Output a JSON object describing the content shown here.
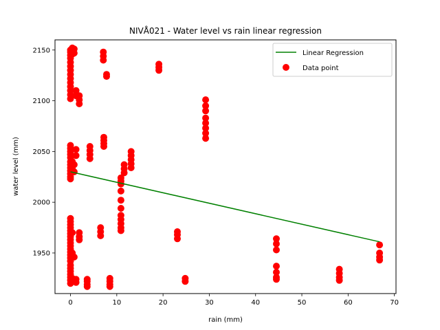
{
  "chart_data": {
    "type": "scatter",
    "title": "NIVÅ021 - Water level vs rain linear regression",
    "xlabel": "rain (mm)",
    "ylabel": "water level (mm)",
    "xlim": [
      -3.35,
      70.35
    ],
    "ylim": [
      1910,
      2160
    ],
    "x_ticks": [
      0,
      10,
      20,
      30,
      40,
      50,
      60,
      70
    ],
    "y_ticks": [
      1950,
      2000,
      2050,
      2100,
      2150
    ],
    "grid": false,
    "legend_position": "top-right",
    "colors": {
      "points": "#ff0000",
      "regression": "#008000"
    },
    "series": [
      {
        "name": "Data point",
        "kind": "scatter",
        "points": [
          [
            0,
            2150
          ],
          [
            0,
            2148
          ],
          [
            0,
            2145
          ],
          [
            0,
            2142
          ],
          [
            0,
            2138
          ],
          [
            0,
            2134
          ],
          [
            0,
            2130
          ],
          [
            0,
            2126
          ],
          [
            0,
            2122
          ],
          [
            0,
            2118
          ],
          [
            0,
            2114
          ],
          [
            0,
            2110
          ],
          [
            0,
            2106
          ],
          [
            0,
            2102
          ],
          [
            0,
            2056
          ],
          [
            0,
            2053
          ],
          [
            0,
            2050
          ],
          [
            0,
            2047
          ],
          [
            0,
            2044
          ],
          [
            0,
            2040
          ],
          [
            0,
            2037
          ],
          [
            0,
            2034
          ],
          [
            0,
            2031
          ],
          [
            0,
            2028
          ],
          [
            0,
            2025
          ],
          [
            0,
            2023
          ],
          [
            0,
            1984
          ],
          [
            0,
            1981
          ],
          [
            0,
            1978
          ],
          [
            0,
            1975
          ],
          [
            0,
            1972
          ],
          [
            0,
            1969
          ],
          [
            0,
            1966
          ],
          [
            0,
            1963
          ],
          [
            0,
            1960
          ],
          [
            0,
            1957
          ],
          [
            0,
            1954
          ],
          [
            0,
            1951
          ],
          [
            0,
            1948
          ],
          [
            0,
            1945
          ],
          [
            0,
            1942
          ],
          [
            0,
            1938
          ],
          [
            0,
            1935
          ],
          [
            0,
            1932
          ],
          [
            0,
            1929
          ],
          [
            0,
            1926
          ],
          [
            0,
            1923
          ],
          [
            0,
            1920
          ],
          [
            0.4,
            2152
          ],
          [
            0.4,
            2146
          ],
          [
            0.4,
            2040
          ],
          [
            0.4,
            2033
          ],
          [
            0.4,
            1970
          ],
          [
            0.4,
            1950
          ],
          [
            0.4,
            1925
          ],
          [
            0.8,
            2151
          ],
          [
            0.8,
            2147
          ],
          [
            0.8,
            2037
          ],
          [
            0.8,
            2030
          ],
          [
            0.8,
            1946
          ],
          [
            0.8,
            1922
          ],
          [
            1.2,
            2110
          ],
          [
            1.2,
            2105
          ],
          [
            1.2,
            2052
          ],
          [
            1.2,
            2046
          ],
          [
            1.2,
            1924
          ],
          [
            1.2,
            1921
          ],
          [
            1.9,
            2105
          ],
          [
            1.9,
            2101
          ],
          [
            1.9,
            2097
          ],
          [
            1.9,
            1970
          ],
          [
            1.9,
            1966
          ],
          [
            1.9,
            1963
          ],
          [
            3.6,
            1924
          ],
          [
            3.6,
            1922
          ],
          [
            3.6,
            1919
          ],
          [
            3.6,
            1917
          ],
          [
            4.2,
            2055
          ],
          [
            4.2,
            2051
          ],
          [
            4.2,
            2047
          ],
          [
            4.2,
            2043
          ],
          [
            6.5,
            1975
          ],
          [
            6.5,
            1971
          ],
          [
            6.5,
            1967
          ],
          [
            7.1,
            2148
          ],
          [
            7.1,
            2144
          ],
          [
            7.1,
            2140
          ],
          [
            7.2,
            2064
          ],
          [
            7.2,
            2061
          ],
          [
            7.2,
            2058
          ],
          [
            7.2,
            2055
          ],
          [
            7.8,
            2126
          ],
          [
            7.8,
            2124
          ],
          [
            8.5,
            1925
          ],
          [
            8.5,
            1922
          ],
          [
            8.5,
            1919
          ],
          [
            8.5,
            1917
          ],
          [
            10.9,
            2024
          ],
          [
            10.9,
            2021
          ],
          [
            10.9,
            2018
          ],
          [
            10.9,
            2011
          ],
          [
            10.9,
            2002
          ],
          [
            10.9,
            1994
          ],
          [
            10.9,
            1987
          ],
          [
            10.9,
            1983
          ],
          [
            10.9,
            1979
          ],
          [
            10.9,
            1975
          ],
          [
            10.9,
            1972
          ],
          [
            11.6,
            2037
          ],
          [
            11.6,
            2033
          ],
          [
            11.6,
            2029
          ],
          [
            13.1,
            2050
          ],
          [
            13.1,
            2046
          ],
          [
            13.1,
            2042
          ],
          [
            13.1,
            2038
          ],
          [
            13.1,
            2034
          ],
          [
            19.1,
            2136
          ],
          [
            19.1,
            2133
          ],
          [
            19.1,
            2130
          ],
          [
            23.1,
            1971
          ],
          [
            23.1,
            1968
          ],
          [
            23.1,
            1964
          ],
          [
            24.8,
            1925
          ],
          [
            24.8,
            1922
          ],
          [
            29.2,
            2101
          ],
          [
            29.2,
            2095
          ],
          [
            29.2,
            2090
          ],
          [
            29.2,
            2083
          ],
          [
            29.2,
            2078
          ],
          [
            29.2,
            2073
          ],
          [
            29.2,
            2068
          ],
          [
            29.2,
            2063
          ],
          [
            44.5,
            1964
          ],
          [
            44.5,
            1959
          ],
          [
            44.5,
            1953
          ],
          [
            44.5,
            1937
          ],
          [
            44.5,
            1931
          ],
          [
            44.5,
            1926
          ],
          [
            44.5,
            1924
          ],
          [
            58.1,
            1934
          ],
          [
            58.1,
            1930
          ],
          [
            58.1,
            1926
          ],
          [
            58.1,
            1923
          ],
          [
            66.8,
            1958
          ],
          [
            66.8,
            1950
          ],
          [
            66.8,
            1946
          ],
          [
            66.8,
            1943
          ]
        ]
      },
      {
        "name": "Linear Regression",
        "kind": "line",
        "points": [
          [
            0,
            2030
          ],
          [
            66.8,
            1961
          ]
        ]
      }
    ]
  }
}
